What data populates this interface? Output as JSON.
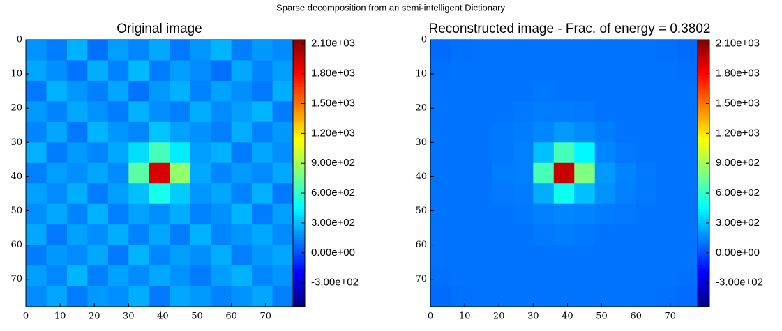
{
  "title": "Sparse decomposition from an semi-intelligent Dictionary",
  "chart_data": [
    {
      "type": "heatmap",
      "title": "Original image",
      "xlim": [
        0,
        78
      ],
      "ylim": [
        78,
        0
      ],
      "xticks": [
        0,
        10,
        20,
        30,
        40,
        50,
        60,
        70
      ],
      "yticks": [
        0,
        10,
        20,
        30,
        40,
        50,
        60,
        70
      ],
      "x": [
        0,
        6,
        12,
        18,
        24,
        30,
        36,
        42,
        48,
        54,
        60,
        66,
        72,
        78
      ],
      "y": [
        0,
        6,
        12,
        18,
        24,
        30,
        36,
        42,
        48,
        54,
        60,
        66,
        72,
        78
      ],
      "colormap": "jet",
      "clim": [
        -540,
        2140
      ],
      "cticks": [
        {
          "value": 2100,
          "label": "2.10e+03"
        },
        {
          "value": 1800,
          "label": "1.80e+03"
        },
        {
          "value": 1500,
          "label": "1.50e+03"
        },
        {
          "value": 1200,
          "label": "1.20e+03"
        },
        {
          "value": 900,
          "label": "9.00e+02"
        },
        {
          "value": 600,
          "label": "6.00e+02"
        },
        {
          "value": 300,
          "label": "3.00e+02"
        },
        {
          "value": 0,
          "label": "0.00e+00"
        },
        {
          "value": -300,
          "label": "-3.00e+02"
        }
      ],
      "values": [
        [
          180,
          120,
          260,
          90,
          210,
          150,
          240,
          110,
          190,
          270,
          130,
          200,
          160
        ],
        [
          230,
          170,
          100,
          250,
          140,
          280,
          120,
          210,
          160,
          90,
          240,
          150,
          210
        ],
        [
          110,
          260,
          190,
          130,
          230,
          100,
          200,
          260,
          140,
          220,
          170,
          110,
          250
        ],
        [
          200,
          140,
          240,
          180,
          120,
          260,
          170,
          130,
          250,
          160,
          210,
          270,
          120
        ],
        [
          150,
          230,
          110,
          270,
          190,
          150,
          310,
          220,
          180,
          130,
          250,
          140,
          200
        ],
        [
          260,
          120,
          200,
          150,
          240,
          380,
          650,
          420,
          210,
          260,
          120,
          230,
          170
        ],
        [
          130,
          210,
          170,
          230,
          160,
          700,
          1900,
          850,
          240,
          150,
          200,
          160,
          240
        ],
        [
          220,
          160,
          250,
          120,
          210,
          300,
          520,
          330,
          190,
          230,
          140,
          260,
          110
        ],
        [
          170,
          240,
          140,
          260,
          130,
          220,
          170,
          250,
          140,
          180,
          270,
          120,
          210
        ],
        [
          240,
          110,
          220,
          170,
          250,
          140,
          230,
          120,
          260,
          150,
          190,
          240,
          160
        ],
        [
          120,
          200,
          160,
          240,
          110,
          270,
          150,
          210,
          170,
          250,
          130,
          200,
          230
        ],
        [
          210,
          150,
          270,
          130,
          220,
          160,
          240,
          180,
          120,
          210,
          260,
          150,
          190
        ],
        [
          160,
          230,
          120,
          200,
          170,
          250,
          110,
          240,
          200,
          140,
          180,
          230,
          130
        ]
      ]
    },
    {
      "type": "heatmap",
      "title": "Reconstructed image - Frac. of energy = 0.3802",
      "xlim": [
        0,
        78
      ],
      "ylim": [
        78,
        0
      ],
      "xticks": [
        0,
        10,
        20,
        30,
        40,
        50,
        60,
        70
      ],
      "yticks": [
        0,
        10,
        20,
        30,
        40,
        50,
        60,
        70
      ],
      "x": [
        0,
        6,
        12,
        18,
        24,
        30,
        36,
        42,
        48,
        54,
        60,
        66,
        72,
        78
      ],
      "y": [
        0,
        6,
        12,
        18,
        24,
        30,
        36,
        42,
        48,
        54,
        60,
        66,
        72,
        78
      ],
      "colormap": "jet",
      "clim": [
        -540,
        2140
      ],
      "cticks": [
        {
          "value": 2100,
          "label": "2.10e+03"
        },
        {
          "value": 1800,
          "label": "1.80e+03"
        },
        {
          "value": 1500,
          "label": "1.50e+03"
        },
        {
          "value": 1200,
          "label": "1.20e+03"
        },
        {
          "value": 900,
          "label": "9.00e+02"
        },
        {
          "value": 600,
          "label": "6.00e+02"
        },
        {
          "value": 300,
          "label": "3.00e+02"
        },
        {
          "value": 0,
          "label": "0.00e+00"
        },
        {
          "value": -300,
          "label": "-3.00e+02"
        }
      ],
      "values": [
        [
          80,
          90,
          100,
          100,
          100,
          100,
          100,
          100,
          100,
          100,
          100,
          90,
          80
        ],
        [
          90,
          100,
          100,
          100,
          100,
          100,
          100,
          100,
          100,
          100,
          100,
          100,
          90
        ],
        [
          100,
          100,
          100,
          100,
          100,
          110,
          100,
          100,
          100,
          100,
          100,
          100,
          100
        ],
        [
          100,
          100,
          100,
          100,
          110,
          120,
          120,
          110,
          100,
          100,
          100,
          100,
          100
        ],
        [
          100,
          100,
          100,
          110,
          120,
          150,
          200,
          160,
          120,
          100,
          100,
          100,
          100
        ],
        [
          100,
          100,
          100,
          110,
          130,
          300,
          650,
          450,
          150,
          110,
          100,
          100,
          100
        ],
        [
          100,
          100,
          100,
          120,
          130,
          650,
          1950,
          800,
          200,
          140,
          110,
          100,
          100
        ],
        [
          100,
          100,
          100,
          110,
          120,
          250,
          500,
          300,
          180,
          130,
          110,
          100,
          100
        ],
        [
          100,
          100,
          100,
          100,
          110,
          130,
          150,
          140,
          120,
          110,
          100,
          100,
          100
        ],
        [
          100,
          100,
          100,
          100,
          100,
          110,
          120,
          110,
          100,
          100,
          100,
          100,
          100
        ],
        [
          100,
          100,
          100,
          100,
          100,
          100,
          100,
          100,
          100,
          100,
          100,
          100,
          100
        ],
        [
          90,
          100,
          100,
          100,
          100,
          100,
          100,
          100,
          100,
          100,
          100,
          100,
          90
        ],
        [
          80,
          90,
          100,
          100,
          100,
          100,
          100,
          100,
          100,
          100,
          100,
          90,
          80
        ]
      ]
    }
  ]
}
